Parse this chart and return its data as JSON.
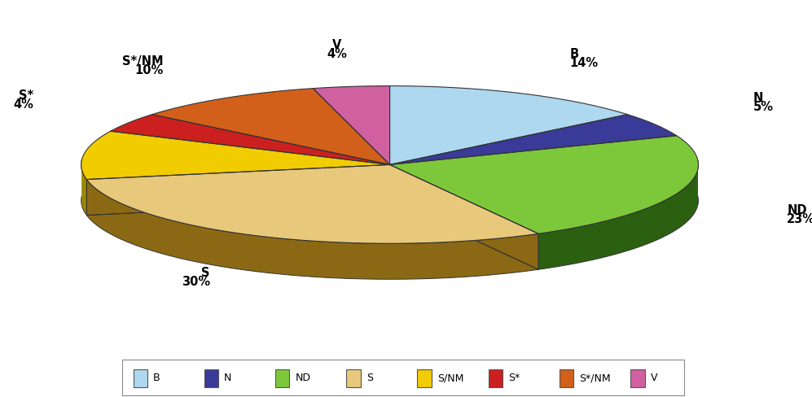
{
  "labels": [
    "B",
    "N",
    "ND",
    "S",
    "S/NM",
    "S*",
    "S*/NM",
    "V"
  ],
  "values": [
    14,
    5,
    23,
    30,
    10,
    4,
    10,
    4
  ],
  "colors": [
    "#ADD8F0",
    "#3A3A99",
    "#7DC83A",
    "#E8C87A",
    "#F0CC00",
    "#CC2020",
    "#D2601A",
    "#D060A0"
  ],
  "dark_colors": [
    "#5588AA",
    "#1A1A55",
    "#2A6010",
    "#8B6914",
    "#9B8800",
    "#881010",
    "#884010",
    "#883070"
  ],
  "startangle": 90,
  "background_color": "#ffffff",
  "legend_labels": [
    "B",
    "N",
    "ND",
    "S",
    "S/NM",
    "S*",
    "S*/NM",
    "V"
  ],
  "legend_colors": [
    "#ADD8F0",
    "#3A3A99",
    "#7DC83A",
    "#E8C87A",
    "#F0CC00",
    "#CC2020",
    "#D2601A",
    "#D060A0"
  ]
}
